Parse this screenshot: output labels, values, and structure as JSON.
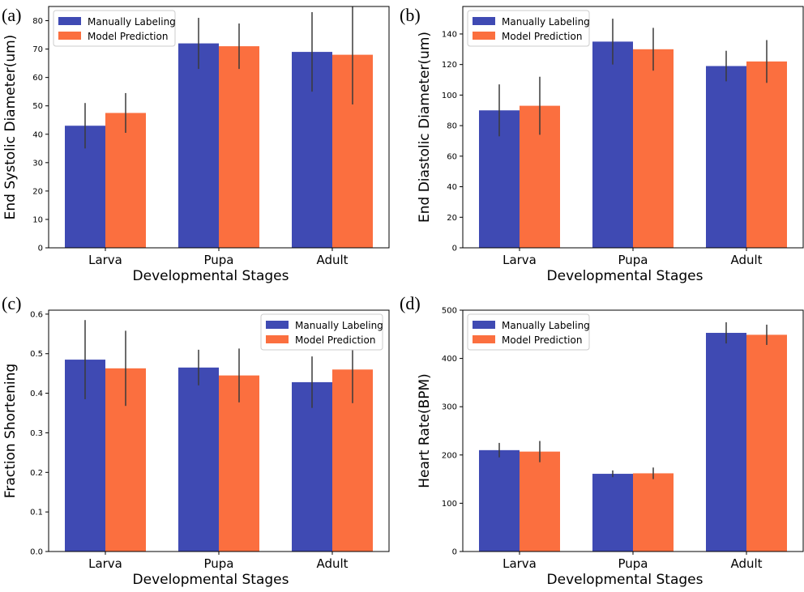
{
  "colors": {
    "manual": "#3f4ab3",
    "model": "#fb6f3f",
    "error_bar": "#3a3a3a",
    "axis": "#000000",
    "legend_border": "#cccccc"
  },
  "chart_data": [
    {
      "type": "bar",
      "panel_label": "(a)",
      "categories": [
        "Larva",
        "Pupa",
        "Adult"
      ],
      "series": [
        {
          "name": "Manually Labeling",
          "values": [
            43,
            72,
            69
          ],
          "errors": [
            8,
            9,
            14
          ]
        },
        {
          "name": "Model Prediction",
          "values": [
            47.5,
            71,
            68
          ],
          "errors": [
            7,
            8,
            17.5
          ]
        }
      ],
      "xlabel": "Developmental Stages",
      "ylabel": "End Systolic Diameter(um)",
      "ylim": [
        0,
        85
      ],
      "yticks": [
        0,
        10,
        20,
        30,
        40,
        50,
        60,
        70,
        80
      ],
      "legend": "top-left"
    },
    {
      "type": "bar",
      "panel_label": "(b)",
      "categories": [
        "Larva",
        "Pupa",
        "Adult"
      ],
      "series": [
        {
          "name": "Manually Labeling",
          "values": [
            90,
            135,
            119
          ],
          "errors": [
            17,
            15,
            10
          ]
        },
        {
          "name": "Model Prediction",
          "values": [
            93,
            130,
            122
          ],
          "errors": [
            19,
            14,
            14
          ]
        }
      ],
      "xlabel": "Developmental Stages",
      "ylabel": "End Diastolic Diameter(um)",
      "ylim": [
        0,
        158
      ],
      "yticks": [
        0,
        20,
        40,
        60,
        80,
        100,
        120,
        140
      ],
      "legend": "top-left"
    },
    {
      "type": "bar",
      "panel_label": "(c)",
      "categories": [
        "Larva",
        "Pupa",
        "Adult"
      ],
      "series": [
        {
          "name": "Manually Labeling",
          "values": [
            0.485,
            0.465,
            0.428
          ],
          "errors": [
            0.1,
            0.045,
            0.065
          ]
        },
        {
          "name": "Model Prediction",
          "values": [
            0.463,
            0.445,
            0.46
          ],
          "errors": [
            0.095,
            0.068,
            0.085
          ]
        }
      ],
      "xlabel": "Developmental Stages",
      "ylabel": "Fraction Shortening",
      "ylim": [
        0,
        0.61
      ],
      "yticks": [
        "0.0",
        "0.1",
        "0.2",
        "0.3",
        "0.4",
        "0.5",
        "0.6"
      ],
      "legend": "top-right"
    },
    {
      "type": "bar",
      "panel_label": "(d)",
      "categories": [
        "Larva",
        "Pupa",
        "Adult"
      ],
      "series": [
        {
          "name": "Manually Labeling",
          "values": [
            210,
            161,
            453
          ],
          "errors": [
            15,
            7,
            22
          ]
        },
        {
          "name": "Model Prediction",
          "values": [
            207,
            162,
            449
          ],
          "errors": [
            22,
            12,
            21
          ]
        }
      ],
      "xlabel": "Developmental Stages",
      "ylabel": "Heart Rate(BPM)",
      "ylim": [
        0,
        500
      ],
      "yticks": [
        0,
        100,
        200,
        300,
        400,
        500
      ],
      "legend": "top-left"
    }
  ]
}
